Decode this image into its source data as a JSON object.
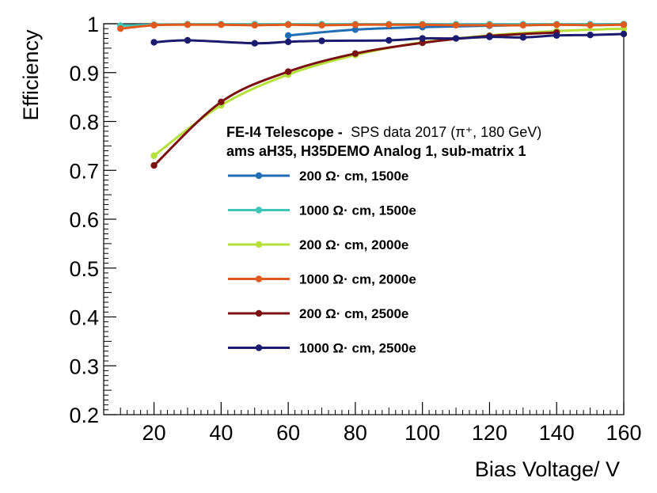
{
  "chart_data": {
    "type": "line",
    "title": "",
    "xlabel": "Bias Voltage/ V",
    "ylabel": "Efficiency",
    "xlim": [
      5,
      160
    ],
    "ylim": [
      0.2,
      1.0
    ],
    "x_ticks": [
      20,
      40,
      60,
      80,
      100,
      120,
      140,
      160
    ],
    "y_ticks": [
      0.2,
      0.3,
      0.4,
      0.5,
      0.6,
      0.7,
      0.8,
      0.9,
      1.0
    ],
    "x_tick_labels": [
      "20",
      "40",
      "60",
      "80",
      "100",
      "120",
      "140",
      "160"
    ],
    "y_tick_labels": [
      "0.2",
      "0.3",
      "0.4",
      "0.5",
      "0.6",
      "0.7",
      "0.8",
      "0.9",
      "1"
    ],
    "grid": false,
    "legend_position": "center",
    "annotation": {
      "line1_bold": "FE-I4 Telescope -",
      "line1_normal": "SPS data 2017 (π⁺, 180 GeV)",
      "line2_bold": "ams aH35, H35DEMO Analog 1, sub-matrix 1"
    },
    "series": [
      {
        "name": "200 Ω·cm, 1500e",
        "label": "200 Ω· cm, 1500e",
        "color": "#1f6eb4",
        "x": [
          60,
          80,
          100,
          120,
          140,
          160
        ],
        "y": [
          0.976,
          0.988,
          0.993,
          0.996,
          0.998,
          0.999
        ]
      },
      {
        "name": "1000 Ω·cm, 1500e",
        "label": "1000  Ω· cm, 1500e",
        "color": "#3fc4b8",
        "x": [
          10,
          20,
          30,
          40,
          50,
          60,
          70,
          80,
          90,
          100,
          110,
          120,
          130,
          140,
          150,
          160
        ],
        "y": [
          0.996,
          0.998,
          0.999,
          0.999,
          0.999,
          0.999,
          0.999,
          0.999,
          0.999,
          0.999,
          0.999,
          0.999,
          0.999,
          0.999,
          0.999,
          0.999
        ]
      },
      {
        "name": "200 Ω·cm, 2000e",
        "label": "200  Ω· cm, 2000e",
        "color": "#b5e03a",
        "x": [
          20,
          40,
          60,
          80,
          100,
          120,
          140,
          160
        ],
        "y": [
          0.73,
          0.833,
          0.896,
          0.936,
          0.962,
          0.976,
          0.985,
          0.99
        ]
      },
      {
        "name": "1000 Ω·cm, 2000e",
        "label": "1000  Ω· cm, 2000e",
        "color": "#e05a1e",
        "x": [
          10,
          20,
          30,
          40,
          50,
          60,
          70,
          80,
          90,
          100,
          110,
          120,
          130,
          140,
          150,
          160
        ],
        "y": [
          0.99,
          0.997,
          0.998,
          0.998,
          0.997,
          0.998,
          0.997,
          0.998,
          0.998,
          0.998,
          0.997,
          0.997,
          0.997,
          0.998,
          0.997,
          0.998
        ]
      },
      {
        "name": "200 Ω·cm, 2500e",
        "label": "200  Ω· cm, 2500e",
        "color": "#7a1010",
        "x": [
          20,
          40,
          60,
          80,
          100,
          120,
          140
        ],
        "y": [
          0.71,
          0.84,
          0.902,
          0.939,
          0.961,
          0.975,
          0.982
        ]
      },
      {
        "name": "1000 Ω·cm, 2500e",
        "label": "1000  Ω· cm, 2500e",
        "color": "#1a1a6e",
        "x": [
          20,
          30,
          50,
          60,
          70,
          90,
          100,
          110,
          120,
          130,
          140,
          150,
          160
        ],
        "y": [
          0.962,
          0.966,
          0.96,
          0.963,
          0.965,
          0.966,
          0.97,
          0.97,
          0.973,
          0.972,
          0.976,
          0.977,
          0.979
        ]
      }
    ]
  }
}
